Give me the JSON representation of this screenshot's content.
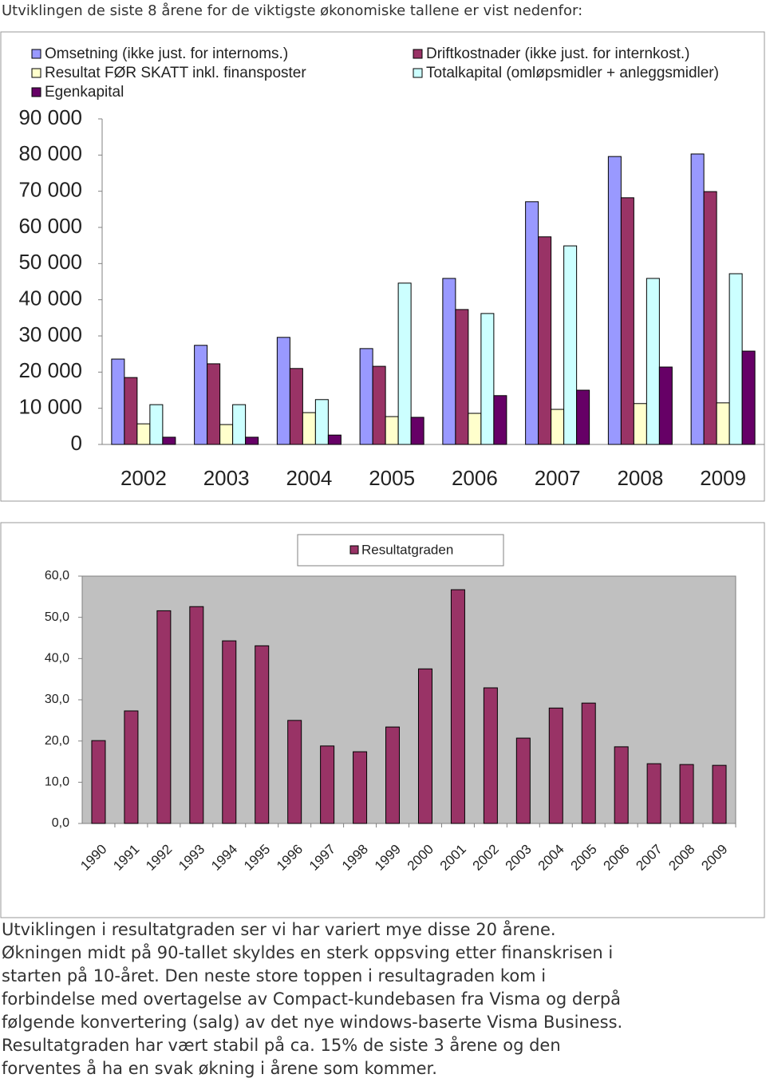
{
  "intro": "Utviklingen de siste 8 årene for de viktigste økonomiske tallene er vist nedenfor:",
  "chart_data": [
    {
      "type": "bar",
      "categories": [
        "2002",
        "2003",
        "2004",
        "2005",
        "2006",
        "2007",
        "2008",
        "2009"
      ],
      "series": [
        {
          "name": "Omsetning (ikke just. for internoms.)",
          "color": "#9999ff",
          "values": [
            23600,
            27400,
            29600,
            26500,
            45900,
            67100,
            79600,
            80300
          ]
        },
        {
          "name": "Driftkostnader (ikke just. for internkost.)",
          "color": "#993366",
          "values": [
            18500,
            22300,
            21000,
            21600,
            37300,
            57400,
            68200,
            69900
          ]
        },
        {
          "name": "Resultat FØR SKATT inkl. finansposter",
          "color": "#ffffcc",
          "values": [
            5700,
            5500,
            8800,
            7700,
            8600,
            9700,
            11300,
            11500
          ]
        },
        {
          "name": "Totalkapital (omløpsmidler + anleggsmidler)",
          "color": "#ccffff",
          "values": [
            11000,
            11000,
            12400,
            44600,
            36200,
            54900,
            45900,
            47200
          ]
        },
        {
          "name": "Egenkapital",
          "color": "#660066",
          "values": [
            2000,
            2000,
            2600,
            7500,
            13500,
            15000,
            21400,
            25800
          ]
        }
      ],
      "ylim": [
        0,
        90000
      ],
      "yticks": [
        0,
        {
          "value": 10000,
          "label": "10 000"
        },
        {
          "value": 20000,
          "label": "20 000"
        },
        {
          "value": 30000,
          "label": "30 000"
        },
        {
          "value": 40000,
          "label": "40 000"
        },
        {
          "value": 50000,
          "label": "50 000"
        },
        {
          "value": 60000,
          "label": "60 000"
        },
        {
          "value": 70000,
          "label": "70 000"
        },
        {
          "value": 80000,
          "label": "80 000"
        },
        {
          "value": 90000,
          "label": "90 000"
        }
      ],
      "grid": false,
      "legend": "top"
    },
    {
      "type": "bar",
      "categories": [
        "1990",
        "1991",
        "1992",
        "1993",
        "1994",
        "1995",
        "1996",
        "1997",
        "1998",
        "1999",
        "2000",
        "2001",
        "2002",
        "2003",
        "2004",
        "2005",
        "2006",
        "2007",
        "2008",
        "2009"
      ],
      "series": [
        {
          "name": "Resultatgraden",
          "color": "#993366",
          "values": [
            20.1,
            27.3,
            51.6,
            52.6,
            44.3,
            43.1,
            25.0,
            18.8,
            17.4,
            23.4,
            37.5,
            56.7,
            32.9,
            20.7,
            28.0,
            29.2,
            18.6,
            14.5,
            14.3,
            14.1
          ]
        }
      ],
      "ylim": [
        0,
        60
      ],
      "yticks": [
        {
          "value": 0,
          "label": "0,0"
        },
        {
          "value": 10,
          "label": "10,0"
        },
        {
          "value": 20,
          "label": "20,0"
        },
        {
          "value": 30,
          "label": "30,0"
        },
        {
          "value": 40,
          "label": "40,0"
        },
        {
          "value": 50,
          "label": "50,0"
        },
        {
          "value": 60,
          "label": "60,0"
        }
      ],
      "grid": false,
      "legend": "top"
    }
  ],
  "paragraph": [
    "Utviklingen i resultatgraden ser vi har variert mye disse 20 årene.",
    "Økningen midt på 90-tallet skyldes en sterk oppsving etter finanskrisen i",
    "starten på 10-året. Den neste store toppen i resultagraden kom i",
    "forbindelse med overtagelse av Compact-kundebasen fra Visma og derpå",
    "følgende konvertering (salg) av det nye windows-baserte Visma Business.",
    "Resultatgraden har vært stabil på ca. 15% de siste 3 årene og den",
    "forventes å ha en svak økning i årene som kommer."
  ]
}
